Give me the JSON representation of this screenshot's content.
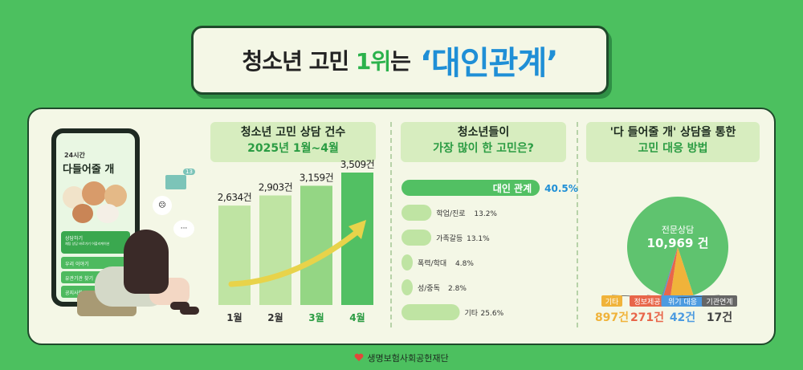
{
  "header": {
    "title_prefix": "청소년 고민 ",
    "title_rank": "1위",
    "title_suffix": "는",
    "title_accent": "‘대인관계’"
  },
  "phone": {
    "badge": "24시간",
    "app_name": "다들어줄 개",
    "menu": [
      "상담하기",
      "우리 이야기",
      "유관기관 찾기",
      "공지사항"
    ],
    "menu_sub": "채팅 상담 바로가기 어플리케이션"
  },
  "illustration": {
    "envelope_badge": "13"
  },
  "section1": {
    "line1": "청소년 고민 상담 건수",
    "line2": "2025년 1월~4월"
  },
  "section2": {
    "line1": "청소년들이",
    "line2": "가장 많이 한 고민은?"
  },
  "section3": {
    "line1": "'다 들어줄 개' 상담을 통한",
    "line2": "고민 대응 방법"
  },
  "footer": {
    "org": "생명보험사회공헌재단"
  },
  "colors": {
    "background": "#4cc05f",
    "panel": "#f4f7e6",
    "bar_light": "#bfe4a3",
    "bar_dark": "#52c063",
    "accent_blue": "#1f8fd6",
    "month_green": "#2b9c43"
  },
  "chart_data": [
    {
      "type": "bar",
      "categories": [
        "1월",
        "2월",
        "3월",
        "4월"
      ],
      "values": [
        2634,
        2903,
        3159,
        3509
      ],
      "data_labels": [
        "2,634건",
        "2,903건",
        "3,159건",
        "3,509건"
      ],
      "highlight_categories": [
        "3월",
        "4월"
      ],
      "title": "청소년 고민 상담 건수",
      "subtitle": "2025년 1월~4월",
      "grid": false
    },
    {
      "type": "bar",
      "orientation": "horizontal",
      "categories": [
        "대인 관계",
        "학업/진로",
        "가족갈등",
        "폭력/학대",
        "성/중독",
        "기타"
      ],
      "values": [
        40.5,
        13.2,
        13.1,
        4.8,
        2.8,
        25.6
      ],
      "data_labels": [
        "40.5%",
        "13.2%",
        "13.1%",
        "4.8%",
        "2.8%",
        "25.6%"
      ],
      "unit": "%",
      "title": "청소년들이",
      "subtitle": "가장 많이 한 고민은?",
      "grid": false
    },
    {
      "type": "pie",
      "categories": [
        "전문상담",
        "기타",
        "정보제공",
        "위기 대응",
        "기관연계"
      ],
      "values": [
        10969,
        897,
        271,
        42,
        17
      ],
      "data_labels": [
        "10,969 건",
        "897건",
        "271건",
        "42건",
        "17건"
      ],
      "colors": [
        "#5fc36f",
        "#f0b33a",
        "#e8664a",
        "#4d9be0",
        "#666666"
      ],
      "title": "'다 들어줄 개' 상담을 통한",
      "subtitle": "고민 대응 방법"
    }
  ]
}
